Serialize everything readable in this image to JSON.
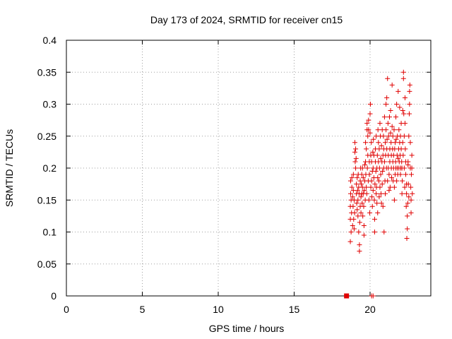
{
  "chart_data": {
    "type": "scatter",
    "title": "Day 173 of 2024, SRMTID for receiver cn15",
    "xlabel": "GPS time / hours",
    "ylabel": "SRMTID / TECUs",
    "xlim": [
      0,
      24
    ],
    "ylim": [
      0,
      0.4
    ],
    "xticks": [
      0,
      5,
      10,
      15,
      20
    ],
    "xtick_labels": [
      "0",
      "5",
      "10",
      "15",
      "20"
    ],
    "yticks": [
      0,
      0.05,
      0.1,
      0.15,
      0.2,
      0.25,
      0.3,
      0.35,
      0.4
    ],
    "ytick_labels": [
      "0",
      "0.05",
      "0.1",
      "0.15",
      "0.2",
      "0.25",
      "0.3",
      "0.35",
      "0.4"
    ],
    "grid": true,
    "color": "#e00000",
    "marker": "plus",
    "special_points": [
      {
        "x": 18.45,
        "y": 0.0,
        "marker": "square"
      },
      {
        "x": 20.1,
        "y": 0.0,
        "marker": "plus"
      },
      {
        "x": 20.2,
        "y": 0.0,
        "marker": "plus"
      }
    ],
    "series": [
      {
        "name": "SRMTID",
        "points": [
          [
            18.7,
            0.085
          ],
          [
            18.7,
            0.12
          ],
          [
            18.7,
            0.14
          ],
          [
            18.72,
            0.16
          ],
          [
            18.72,
            0.18
          ],
          [
            18.75,
            0.1
          ],
          [
            18.75,
            0.15
          ],
          [
            18.78,
            0.13
          ],
          [
            18.8,
            0.17
          ],
          [
            18.8,
            0.185
          ],
          [
            18.85,
            0.11
          ],
          [
            18.85,
            0.155
          ],
          [
            18.88,
            0.14
          ],
          [
            18.9,
            0.165
          ],
          [
            18.9,
            0.19
          ],
          [
            18.92,
            0.12
          ],
          [
            18.95,
            0.105
          ],
          [
            18.95,
            0.15
          ],
          [
            18.98,
            0.13
          ],
          [
            19.0,
            0.24
          ],
          [
            19.0,
            0.225
          ],
          [
            19.02,
            0.21
          ],
          [
            19.05,
            0.23
          ],
          [
            19.05,
            0.2
          ],
          [
            19.08,
            0.215
          ],
          [
            19.1,
            0.175
          ],
          [
            19.1,
            0.16
          ],
          [
            19.12,
            0.145
          ],
          [
            19.15,
            0.135
          ],
          [
            19.15,
            0.185
          ],
          [
            19.18,
            0.165
          ],
          [
            19.2,
            0.125
          ],
          [
            19.2,
            0.15
          ],
          [
            19.22,
            0.19
          ],
          [
            19.25,
            0.1
          ],
          [
            19.25,
            0.17
          ],
          [
            19.28,
            0.16
          ],
          [
            19.3,
            0.07
          ],
          [
            19.3,
            0.08
          ],
          [
            19.32,
            0.115
          ],
          [
            19.35,
            0.14
          ],
          [
            19.35,
            0.18
          ],
          [
            19.38,
            0.2
          ],
          [
            19.4,
            0.155
          ],
          [
            19.4,
            0.13
          ],
          [
            19.42,
            0.175
          ],
          [
            19.45,
            0.16
          ],
          [
            19.45,
            0.19
          ],
          [
            19.48,
            0.145
          ],
          [
            19.5,
            0.2
          ],
          [
            19.5,
            0.17
          ],
          [
            19.52,
            0.125
          ],
          [
            19.55,
            0.16
          ],
          [
            19.55,
            0.185
          ],
          [
            19.58,
            0.14
          ],
          [
            19.6,
            0.095
          ],
          [
            19.6,
            0.11
          ],
          [
            19.62,
            0.165
          ],
          [
            19.65,
            0.205
          ],
          [
            19.65,
            0.18
          ],
          [
            19.68,
            0.15
          ],
          [
            19.7,
            0.21
          ],
          [
            19.7,
            0.24
          ],
          [
            19.72,
            0.19
          ],
          [
            19.75,
            0.17
          ],
          [
            19.75,
            0.23
          ],
          [
            19.78,
            0.16
          ],
          [
            19.8,
            0.26
          ],
          [
            19.8,
            0.27
          ],
          [
            19.82,
            0.2
          ],
          [
            19.85,
            0.25
          ],
          [
            19.85,
            0.22
          ],
          [
            19.88,
            0.18
          ],
          [
            19.9,
            0.26
          ],
          [
            19.9,
            0.275
          ],
          [
            19.92,
            0.15
          ],
          [
            19.95,
            0.21
          ],
          [
            19.95,
            0.19
          ],
          [
            19.98,
            0.13
          ],
          [
            20.0,
            0.285
          ],
          [
            20.0,
            0.255
          ],
          [
            20.02,
            0.3
          ],
          [
            20.05,
            0.22
          ],
          [
            20.05,
            0.17
          ],
          [
            20.08,
            0.24
          ],
          [
            20.1,
            0.21
          ],
          [
            20.1,
            0.18
          ],
          [
            20.12,
            0.155
          ],
          [
            20.15,
            0.195
          ],
          [
            20.15,
            0.14
          ],
          [
            20.18,
            0.225
          ],
          [
            20.2,
            0.2
          ],
          [
            20.2,
            0.165
          ],
          [
            20.22,
            0.245
          ],
          [
            20.25,
            0.185
          ],
          [
            20.25,
            0.22
          ],
          [
            20.28,
            0.15
          ],
          [
            20.3,
            0.1
          ],
          [
            20.3,
            0.12
          ],
          [
            20.32,
            0.175
          ],
          [
            20.35,
            0.21
          ],
          [
            20.35,
            0.23
          ],
          [
            20.38,
            0.195
          ],
          [
            20.4,
            0.16
          ],
          [
            20.4,
            0.25
          ],
          [
            20.42,
            0.17
          ],
          [
            20.45,
            0.145
          ],
          [
            20.45,
            0.2
          ],
          [
            20.48,
            0.22
          ],
          [
            20.5,
            0.185
          ],
          [
            20.5,
            0.13
          ],
          [
            20.52,
            0.26
          ],
          [
            20.55,
            0.24
          ],
          [
            20.55,
            0.21
          ],
          [
            20.58,
            0.18
          ],
          [
            20.6,
            0.155
          ],
          [
            20.6,
            0.23
          ],
          [
            20.62,
            0.2
          ],
          [
            20.65,
            0.17
          ],
          [
            20.65,
            0.27
          ],
          [
            20.68,
            0.25
          ],
          [
            20.7,
            0.215
          ],
          [
            20.7,
            0.19
          ],
          [
            20.72,
            0.16
          ],
          [
            20.75,
            0.145
          ],
          [
            20.75,
            0.235
          ],
          [
            20.78,
            0.21
          ],
          [
            20.8,
            0.26
          ],
          [
            20.8,
            0.175
          ],
          [
            20.82,
            0.195
          ],
          [
            20.85,
            0.22
          ],
          [
            20.85,
            0.14
          ],
          [
            20.88,
            0.25
          ],
          [
            20.9,
            0.23
          ],
          [
            20.9,
            0.2
          ],
          [
            20.92,
            0.1
          ],
          [
            20.95,
            0.28
          ],
          [
            20.95,
            0.21
          ],
          [
            20.98,
            0.18
          ],
          [
            21.0,
            0.24
          ],
          [
            21.0,
            0.16
          ],
          [
            21.02,
            0.22
          ],
          [
            21.05,
            0.26
          ],
          [
            21.05,
            0.3
          ],
          [
            21.08,
            0.2
          ],
          [
            21.1,
            0.23
          ],
          [
            21.1,
            0.31
          ],
          [
            21.12,
            0.245
          ],
          [
            21.15,
            0.18
          ],
          [
            21.15,
            0.34
          ],
          [
            21.18,
            0.27
          ],
          [
            21.2,
            0.22
          ],
          [
            21.2,
            0.2
          ],
          [
            21.22,
            0.25
          ],
          [
            21.25,
            0.19
          ],
          [
            21.25,
            0.165
          ],
          [
            21.28,
            0.28
          ],
          [
            21.3,
            0.23
          ],
          [
            21.3,
            0.21
          ],
          [
            21.32,
            0.17
          ],
          [
            21.35,
            0.255
          ],
          [
            21.35,
            0.29
          ],
          [
            21.38,
            0.24
          ],
          [
            21.4,
            0.2
          ],
          [
            21.4,
            0.22
          ],
          [
            21.42,
            0.185
          ],
          [
            21.45,
            0.265
          ],
          [
            21.45,
            0.33
          ],
          [
            21.48,
            0.23
          ],
          [
            21.5,
            0.21
          ],
          [
            21.5,
            0.25
          ],
          [
            21.52,
            0.18
          ],
          [
            21.55,
            0.2
          ],
          [
            21.55,
            0.22
          ],
          [
            21.58,
            0.26
          ],
          [
            21.6,
            0.15
          ],
          [
            21.6,
            0.17
          ],
          [
            21.62,
            0.23
          ],
          [
            21.65,
            0.19
          ],
          [
            21.65,
            0.24
          ],
          [
            21.68,
            0.21
          ],
          [
            21.7,
            0.2
          ],
          [
            21.7,
            0.28
          ],
          [
            21.72,
            0.245
          ],
          [
            21.75,
            0.3
          ],
          [
            21.75,
            0.18
          ],
          [
            21.78,
            0.22
          ],
          [
            21.8,
            0.2
          ],
          [
            21.8,
            0.25
          ],
          [
            21.82,
            0.19
          ],
          [
            21.85,
            0.215
          ],
          [
            21.85,
            0.32
          ],
          [
            21.88,
            0.23
          ],
          [
            21.9,
            0.2
          ],
          [
            21.9,
            0.26
          ],
          [
            21.92,
            0.21
          ],
          [
            21.95,
            0.24
          ],
          [
            21.95,
            0.295
          ],
          [
            21.98,
            0.22
          ],
          [
            22.0,
            0.25
          ],
          [
            22.0,
            0.19
          ],
          [
            22.02,
            0.2
          ],
          [
            22.05,
            0.23
          ],
          [
            22.05,
            0.27
          ],
          [
            22.08,
            0.21
          ],
          [
            22.1,
            0.16
          ],
          [
            22.1,
            0.2
          ],
          [
            22.12,
            0.18
          ],
          [
            22.15,
            0.24
          ],
          [
            22.15,
            0.29
          ],
          [
            22.18,
            0.22
          ],
          [
            22.2,
            0.34
          ],
          [
            22.2,
            0.35
          ],
          [
            22.22,
            0.285
          ],
          [
            22.25,
            0.25
          ],
          [
            22.25,
            0.2
          ],
          [
            22.28,
            0.17
          ],
          [
            22.3,
            0.31
          ],
          [
            22.3,
            0.27
          ],
          [
            22.32,
            0.23
          ],
          [
            22.35,
            0.21
          ],
          [
            22.35,
            0.19
          ],
          [
            22.38,
            0.14
          ],
          [
            22.4,
            0.175
          ],
          [
            22.4,
            0.16
          ],
          [
            22.42,
            0.09
          ],
          [
            22.45,
            0.105
          ],
          [
            22.45,
            0.125
          ],
          [
            22.48,
            0.145
          ],
          [
            22.5,
            0.205
          ],
          [
            22.5,
            0.21
          ],
          [
            22.52,
            0.175
          ],
          [
            22.55,
            0.155
          ],
          [
            22.55,
            0.25
          ],
          [
            22.58,
            0.285
          ],
          [
            22.6,
            0.3
          ],
          [
            22.6,
            0.32
          ],
          [
            22.62,
            0.33
          ],
          [
            22.65,
            0.24
          ],
          [
            22.65,
            0.2
          ],
          [
            22.68,
            0.17
          ],
          [
            22.7,
            0.13
          ],
          [
            22.7,
            0.15
          ],
          [
            22.72,
            0.19
          ],
          [
            22.75,
            0.22
          ],
          [
            22.75,
            0.2
          ],
          [
            22.78,
            0.16
          ]
        ]
      }
    ]
  }
}
